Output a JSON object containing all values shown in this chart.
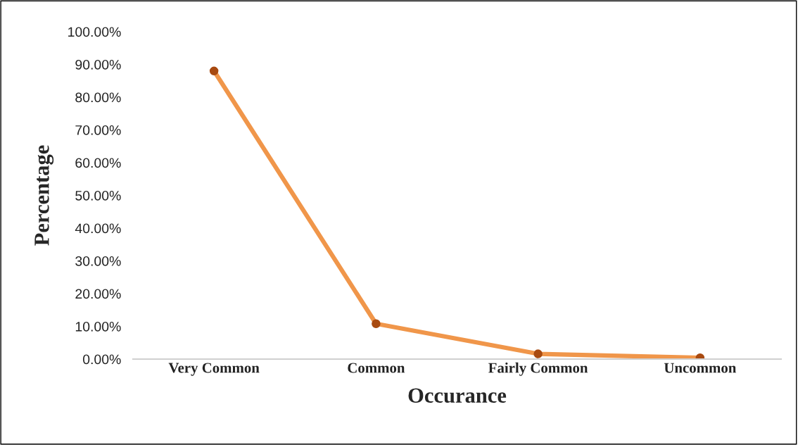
{
  "chart_data": {
    "type": "line",
    "xlabel": "Occurance",
    "ylabel": "Percentage",
    "categories": [
      "Very Common",
      "Common",
      "Fairly Common",
      "Uncommon"
    ],
    "series": [
      {
        "color": "#f0964a",
        "values": [
          88,
          10.8,
          1.6,
          0.4
        ]
      }
    ],
    "ylim": [
      0,
      100
    ],
    "yticks": [
      {
        "value": 0,
        "label": "0.00%"
      },
      {
        "value": 10,
        "label": "10.00%"
      },
      {
        "value": 20,
        "label": "20.00%"
      },
      {
        "value": 30,
        "label": "30.00%"
      },
      {
        "value": 40,
        "label": "40.00%"
      },
      {
        "value": 50,
        "label": "50.00%"
      },
      {
        "value": 60,
        "label": "60.00%"
      },
      {
        "value": 70,
        "label": "70.00%"
      },
      {
        "value": 80,
        "label": "80.00%"
      },
      {
        "value": 90,
        "label": "90.00%"
      },
      {
        "value": 100,
        "label": "100.00%"
      }
    ],
    "marker": "circle",
    "line_style": "solid",
    "grid": false,
    "legend": false
  }
}
